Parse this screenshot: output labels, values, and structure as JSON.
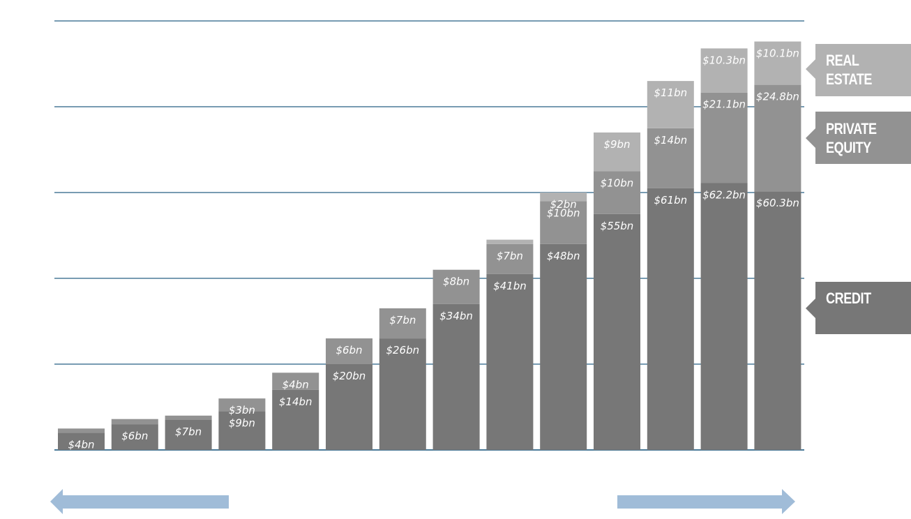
{
  "chart_data": {
    "type": "bar",
    "stacked": true,
    "ylim": [
      0,
      100
    ],
    "grid": true,
    "legend_position": "right",
    "categories": [
      "",
      "",
      "",
      "",
      "",
      "",
      "",
      "",
      "",
      "",
      "",
      "",
      "",
      ""
    ],
    "series": [
      {
        "name": "CREDIT",
        "color": "#777777",
        "values": [
          4,
          6,
          7,
          9,
          14,
          20,
          26,
          34,
          41,
          48,
          55,
          61,
          62.2,
          60.3
        ],
        "labels": [
          "$4bn",
          "$6bn",
          "$7bn",
          "$9bn",
          "$14bn",
          "$20bn",
          "$26bn",
          "$34bn",
          "$41bn",
          "$48bn",
          "$55bn",
          "$61bn",
          "$62.2bn",
          "$60.3bn"
        ]
      },
      {
        "name": "PRIVATE EQUITY",
        "color": "#929292",
        "values": [
          1,
          1.2,
          1,
          3,
          4,
          6,
          7,
          8,
          7,
          10,
          10,
          14,
          21.1,
          24.8
        ],
        "labels": [
          "",
          "",
          "",
          "$3bn",
          "$4bn",
          "$6bn",
          "$7bn",
          "$8bn",
          "$7bn",
          "$10bn",
          "$10bn",
          "$14bn",
          "$21.1bn",
          "$24.8bn"
        ]
      },
      {
        "name": "REAL ESTATE",
        "color": "#b2b2b2",
        "values": [
          0,
          0,
          0,
          0,
          0,
          0,
          0,
          0,
          1,
          2,
          9,
          11,
          10.3,
          10.1
        ],
        "labels": [
          "",
          "",
          "",
          "",
          "",
          "",
          "",
          "",
          "",
          "$2bn",
          "$9bn",
          "$11bn",
          "$10.3bn",
          "$10.1bn"
        ]
      }
    ]
  },
  "legend": {
    "real_estate": "REAL\nESTATE",
    "private_equity": "PRIVATE\nEQUITY",
    "credit": "CREDIT"
  },
  "colors": {
    "gridline": "#4a7a98",
    "arrow": "#a0bcd8",
    "legend_real_estate": "#b2b2b2",
    "legend_private_equity": "#929292",
    "legend_credit": "#777777"
  }
}
